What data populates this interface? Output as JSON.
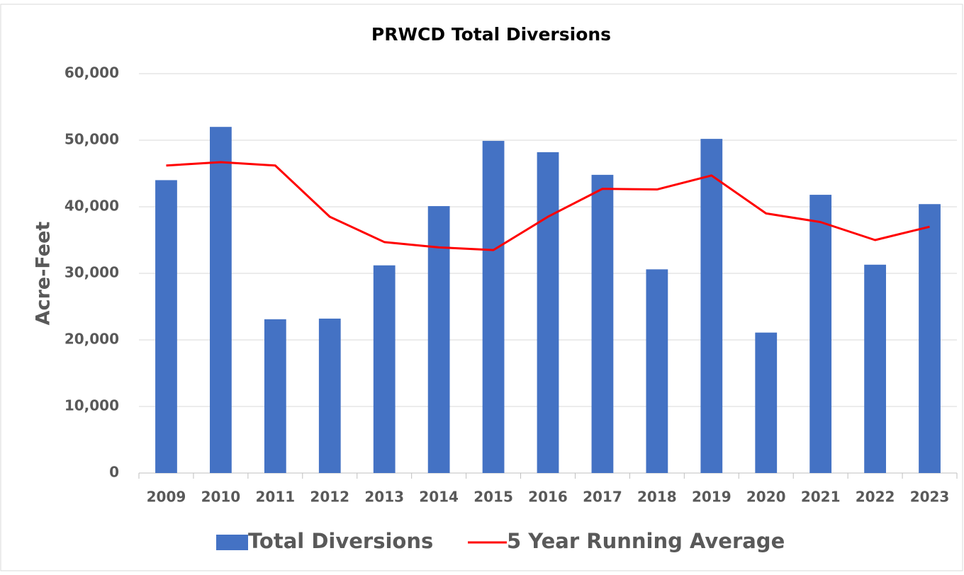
{
  "chart_data": {
    "type": "bar",
    "title": "PRWCD Total Diversions",
    "y_label": "Acre-Feet",
    "categories": [
      "2009",
      "2010",
      "2011",
      "2012",
      "2013",
      "2014",
      "2015",
      "2016",
      "2017",
      "2018",
      "2019",
      "2020",
      "2021",
      "2022",
      "2023"
    ],
    "series": [
      {
        "name": "Total Diversions",
        "type": "bar",
        "color": "#4472c4",
        "values": [
          44000,
          52000,
          23100,
          23200,
          31200,
          40100,
          49900,
          48200,
          44800,
          30600,
          50200,
          21100,
          41800,
          31300,
          40400
        ]
      },
      {
        "name": "5 Year Running Average",
        "type": "line",
        "color": "#ff0000",
        "values": [
          46200,
          46700,
          46200,
          38500,
          34700,
          33900,
          33500,
          38500,
          42700,
          42600,
          44700,
          39000,
          37700,
          35000,
          37000
        ]
      }
    ],
    "ylim": [
      0,
      60000
    ],
    "yticks": [
      0,
      {
        "value": 10000,
        "label": "10,000"
      },
      {
        "value": 20000,
        "label": "20,000"
      },
      {
        "value": 30000,
        "label": "30,000"
      },
      {
        "value": 40000,
        "label": "40,000"
      },
      {
        "value": 50000,
        "label": "50,000"
      },
      {
        "value": 60000,
        "label": "60,000"
      }
    ],
    "grid": true,
    "legend": "bottom"
  }
}
